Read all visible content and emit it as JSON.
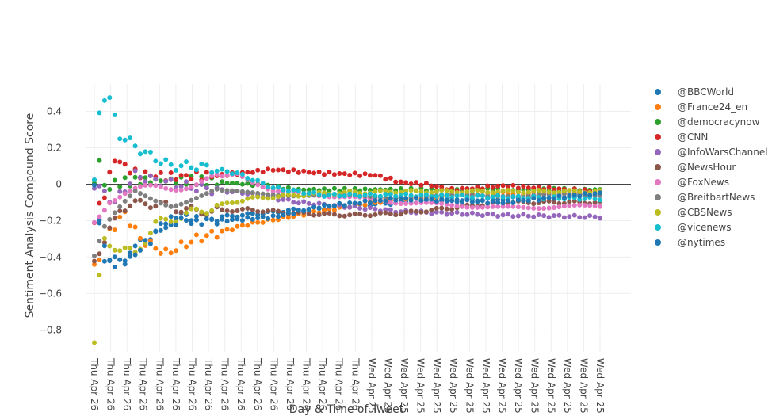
{
  "chart_data": {
    "type": "scatter",
    "xlabel": "Day & Time of Tweet",
    "ylabel": "Sentiment Analysis Compound Score",
    "ylim": [
      -0.92,
      0.55
    ],
    "yticks": [
      0.4,
      0.2,
      0,
      -0.2,
      -0.4,
      -0.6,
      -0.8
    ],
    "ytick_labels": [
      "0.4",
      "0.2",
      "0",
      "−0.2",
      "−0.4",
      "−0.6",
      "−0.8"
    ],
    "x_count": 32,
    "x_tick_labels": [
      "Thu Apr 26",
      "Thu Apr 26",
      "Thu Apr 26",
      "Thu Apr 26",
      "Thu Apr 26",
      "Thu Apr 26",
      "Thu Apr 26",
      "Thu Apr 26",
      "Thu Apr 26",
      "Thu Apr 26",
      "Thu Apr 26",
      "Thu Apr 26",
      "Thu Apr 26",
      "Thu Apr 26",
      "Thu Apr 26",
      "Thu Apr 26",
      "Thu Apr 26",
      "Wed Apr 25",
      "Wed Apr 25",
      "Wed Apr 25",
      "Wed Apr 25",
      "Wed Apr 25",
      "Wed Apr 25",
      "Wed Apr 25",
      "Wed Apr 25",
      "Wed Apr 25",
      "Wed Apr 25",
      "Wed Apr 25",
      "Wed Apr 25",
      "Wed Apr 25",
      "Wed Apr 25",
      "Wed Apr 25"
    ],
    "grid": true,
    "legend_position": "right",
    "points_per_series": 100,
    "series": [
      {
        "name": "@BBCWorld",
        "color": "#1f77b4",
        "keys": [
          [
            0,
            0
          ],
          [
            2,
            -0.4
          ],
          [
            5,
            -0.43
          ],
          [
            10,
            -0.3
          ],
          [
            16,
            -0.18
          ],
          [
            25,
            -0.18
          ],
          [
            40,
            -0.14
          ],
          [
            60,
            -0.1
          ],
          [
            80,
            -0.08
          ],
          [
            99,
            -0.06
          ]
        ]
      },
      {
        "name": "@France24_en",
        "color": "#ff7f0e",
        "keys": [
          [
            0,
            -0.46
          ],
          [
            3,
            -0.26
          ],
          [
            6,
            -0.16
          ],
          [
            9,
            -0.3
          ],
          [
            14,
            -0.38
          ],
          [
            20,
            -0.3
          ],
          [
            30,
            -0.22
          ],
          [
            40,
            -0.17
          ],
          [
            50,
            -0.12
          ],
          [
            60,
            -0.08
          ],
          [
            80,
            -0.05
          ],
          [
            99,
            -0.05
          ]
        ]
      },
      {
        "name": "@democracynow",
        "color": "#2ca02c",
        "keys": [
          [
            0,
            0
          ],
          [
            1,
            0.14
          ],
          [
            2,
            -0.02
          ],
          [
            5,
            0.01
          ],
          [
            10,
            0.02
          ],
          [
            20,
            0.02
          ],
          [
            30,
            0
          ],
          [
            40,
            -0.03
          ],
          [
            60,
            -0.03
          ],
          [
            80,
            -0.03
          ],
          [
            99,
            -0.03
          ]
        ]
      },
      {
        "name": "@CNN",
        "color": "#d62728",
        "keys": [
          [
            0,
            -0.2
          ],
          [
            2,
            -0.05
          ],
          [
            4,
            0.14
          ],
          [
            8,
            0.06
          ],
          [
            15,
            0.04
          ],
          [
            25,
            0.05
          ],
          [
            35,
            0.08
          ],
          [
            45,
            0.06
          ],
          [
            55,
            0.05
          ],
          [
            60,
            0.01
          ],
          [
            65,
            0
          ],
          [
            70,
            -0.03
          ],
          [
            80,
            -0.01
          ],
          [
            99,
            -0.04
          ]
        ]
      },
      {
        "name": "@InfoWarsChannel",
        "color": "#9467bd",
        "keys": [
          [
            0,
            0
          ],
          [
            4,
            -0.1
          ],
          [
            8,
            0.05
          ],
          [
            12,
            0.02
          ],
          [
            20,
            -0.02
          ],
          [
            30,
            -0.05
          ],
          [
            40,
            -0.1
          ],
          [
            60,
            -0.15
          ],
          [
            80,
            -0.17
          ],
          [
            99,
            -0.18
          ]
        ]
      },
      {
        "name": "@NewsHour",
        "color": "#8c564b",
        "keys": [
          [
            0,
            -0.4
          ],
          [
            2,
            -0.33
          ],
          [
            5,
            -0.13
          ],
          [
            10,
            -0.1
          ],
          [
            20,
            -0.15
          ],
          [
            30,
            -0.14
          ],
          [
            40,
            -0.16
          ],
          [
            50,
            -0.17
          ],
          [
            60,
            -0.16
          ],
          [
            80,
            -0.1
          ],
          [
            99,
            -0.1
          ]
        ]
      },
      {
        "name": "@FoxNews",
        "color": "#e377c2",
        "keys": [
          [
            0,
            -0.2
          ],
          [
            3,
            -0.08
          ],
          [
            6,
            -0.05
          ],
          [
            12,
            -0.02
          ],
          [
            20,
            0
          ],
          [
            28,
            0.06
          ],
          [
            35,
            -0.04
          ],
          [
            45,
            -0.06
          ],
          [
            60,
            -0.1
          ],
          [
            80,
            -0.13
          ],
          [
            99,
            -0.12
          ]
        ]
      },
      {
        "name": "@BreitbartNews",
        "color": "#7f7f7f",
        "keys": [
          [
            0,
            -0.4
          ],
          [
            2,
            -0.25
          ],
          [
            4,
            -0.18
          ],
          [
            8,
            -0.05
          ],
          [
            15,
            -0.1
          ],
          [
            25,
            -0.04
          ],
          [
            40,
            -0.06
          ],
          [
            60,
            -0.07
          ],
          [
            80,
            -0.06
          ],
          [
            99,
            -0.06
          ]
        ]
      },
      {
        "name": "@CBSNews",
        "color": "#bcbd22",
        "keys": [
          [
            0,
            -0.89
          ],
          [
            1,
            -0.52
          ],
          [
            2,
            -0.3
          ],
          [
            5,
            -0.36
          ],
          [
            8,
            -0.38
          ],
          [
            12,
            -0.22
          ],
          [
            20,
            -0.15
          ],
          [
            30,
            -0.08
          ],
          [
            45,
            -0.05
          ],
          [
            60,
            -0.04
          ],
          [
            80,
            -0.04
          ],
          [
            99,
            -0.04
          ]
        ]
      },
      {
        "name": "@vicenews",
        "color": "#17becf",
        "keys": [
          [
            0,
            0
          ],
          [
            1,
            0.4
          ],
          [
            2,
            0.48
          ],
          [
            3,
            0.46
          ],
          [
            5,
            0.27
          ],
          [
            7,
            0.23
          ],
          [
            10,
            0.17
          ],
          [
            15,
            0.1
          ],
          [
            20,
            0.1
          ],
          [
            28,
            0.06
          ],
          [
            35,
            -0.02
          ],
          [
            45,
            -0.06
          ],
          [
            60,
            -0.06
          ],
          [
            80,
            -0.07
          ],
          [
            99,
            -0.08
          ]
        ]
      },
      {
        "name": "@nytimes",
        "color": "#1f77b4",
        "keys": [
          [
            0,
            -0.02
          ],
          [
            2,
            -0.36
          ],
          [
            4,
            -0.45
          ],
          [
            8,
            -0.38
          ],
          [
            15,
            -0.2
          ],
          [
            25,
            -0.2
          ],
          [
            35,
            -0.18
          ],
          [
            45,
            -0.12
          ],
          [
            60,
            -0.08
          ],
          [
            80,
            -0.1
          ],
          [
            99,
            -0.05
          ]
        ]
      }
    ]
  }
}
